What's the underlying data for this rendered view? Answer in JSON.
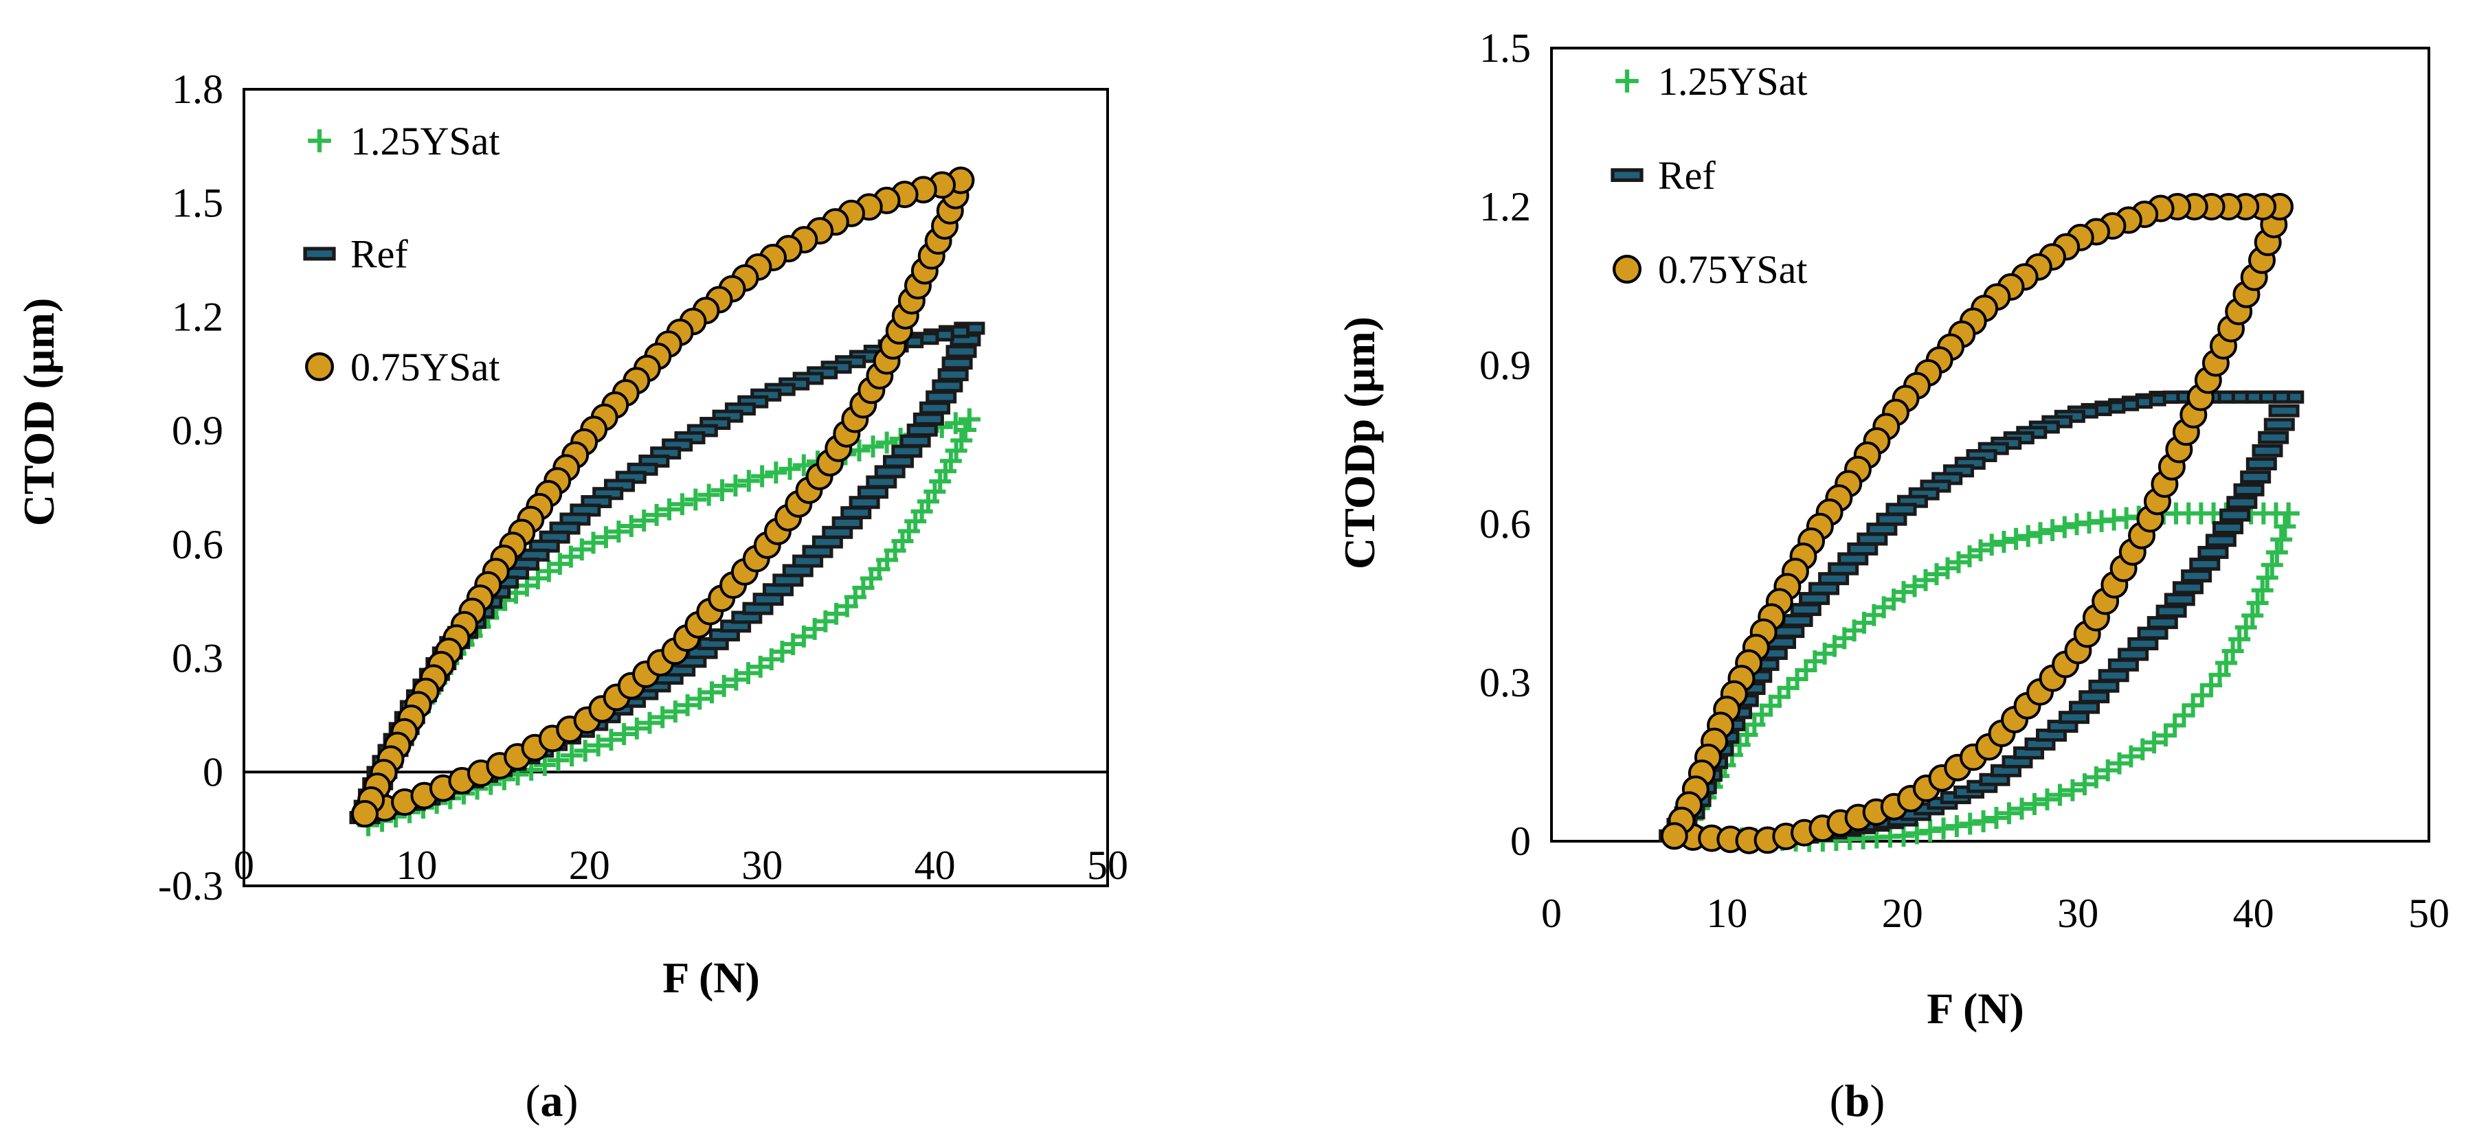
{
  "colors": {
    "series_125": "#2dbb4e",
    "series_ref_fill": "#1f5f7a",
    "series_ref_edge": "#1a1a1a",
    "series_075_fill": "#d39a1d",
    "series_075_edge": "#000000"
  },
  "chart_data": [
    {
      "type": "scatter",
      "panel_label": {
        "open": "(",
        "letter": "a",
        "close": ")"
      },
      "xlabel": "F (N)",
      "ylabel": "CTOD (µm)",
      "xlim": [
        0,
        50
      ],
      "ylim": [
        -0.3,
        1.8
      ],
      "xticks": [
        "0",
        "10",
        "20",
        "30",
        "40",
        "50"
      ],
      "yticks": [
        "-0.3",
        "0",
        "0.3",
        "0.6",
        "0.9",
        "1.2",
        "1.5",
        "1.8"
      ],
      "zero_line": true,
      "legend_placement": "top-left",
      "series": [
        {
          "name": "1.25YSat",
          "marker": "plus",
          "loading": [
            [
              7.2,
              -0.14
            ],
            [
              10,
              -0.1
            ],
            [
              15,
              -0.02
            ],
            [
              20,
              0.06
            ],
            [
              25,
              0.16
            ],
            [
              30,
              0.28
            ],
            [
              35,
              0.44
            ],
            [
              38,
              0.6
            ],
            [
              40,
              0.74
            ],
            [
              41.5,
              0.87
            ],
            [
              42,
              0.93
            ]
          ],
          "unloading": [
            [
              42,
              0.93
            ],
            [
              35,
              0.84
            ],
            [
              30,
              0.78
            ],
            [
              25,
              0.7
            ],
            [
              20,
              0.6
            ],
            [
              15,
              0.45
            ],
            [
              12,
              0.3
            ],
            [
              10,
              0.15
            ],
            [
              8,
              -0.02
            ],
            [
              7.2,
              -0.14
            ]
          ]
        },
        {
          "name": "Ref",
          "marker": "dash",
          "loading": [
            [
              7,
              -0.12
            ],
            [
              10,
              -0.08
            ],
            [
              15,
              0.01
            ],
            [
              20,
              0.12
            ],
            [
              25,
              0.26
            ],
            [
              30,
              0.44
            ],
            [
              35,
              0.66
            ],
            [
              39,
              0.88
            ],
            [
              41,
              1.04
            ],
            [
              42,
              1.17
            ]
          ],
          "unloading": [
            [
              42,
              1.17
            ],
            [
              38,
              1.13
            ],
            [
              35,
              1.08
            ],
            [
              30,
              0.99
            ],
            [
              25,
              0.86
            ],
            [
              20,
              0.7
            ],
            [
              15,
              0.5
            ],
            [
              12,
              0.33
            ],
            [
              10,
              0.18
            ],
            [
              8,
              0.0
            ],
            [
              7,
              -0.12
            ]
          ]
        },
        {
          "name": "0.75YSat",
          "marker": "circle",
          "loading": [
            [
              7,
              -0.11
            ],
            [
              10,
              -0.07
            ],
            [
              15,
              0.02
            ],
            [
              20,
              0.14
            ],
            [
              25,
              0.32
            ],
            [
              30,
              0.58
            ],
            [
              34,
              0.82
            ],
            [
              37,
              1.06
            ],
            [
              39,
              1.28
            ],
            [
              40.5,
              1.43
            ],
            [
              41.5,
              1.56
            ]
          ],
          "unloading": [
            [
              41.5,
              1.56
            ],
            [
              38,
              1.52
            ],
            [
              35,
              1.47
            ],
            [
              30,
              1.34
            ],
            [
              25,
              1.15
            ],
            [
              20,
              0.89
            ],
            [
              15,
              0.56
            ],
            [
              12,
              0.33
            ],
            [
              10,
              0.17
            ],
            [
              8,
              -0.01
            ],
            [
              7,
              -0.11
            ]
          ]
        }
      ]
    },
    {
      "type": "scatter",
      "panel_label": {
        "open": "(",
        "letter": "b",
        "close": ")"
      },
      "xlabel": "F (N)",
      "ylabel": "CTODp (µm)",
      "xlim": [
        0,
        50
      ],
      "ylim": [
        0,
        1.5
      ],
      "xticks": [
        "0",
        "10",
        "20",
        "30",
        "40",
        "50"
      ],
      "yticks": [
        "0",
        "0.3",
        "0.6",
        "0.9",
        "1.2",
        "1.5"
      ],
      "zero_line": false,
      "legend_placement": "top-left",
      "series": [
        {
          "name": "1.25YSat",
          "marker": "plus",
          "loading": [
            [
              7,
              0.01
            ],
            [
              15,
              0.0
            ],
            [
              20,
              0.01
            ],
            [
              25,
              0.04
            ],
            [
              30,
              0.1
            ],
            [
              35,
              0.2
            ],
            [
              38,
              0.31
            ],
            [
              40,
              0.43
            ],
            [
              41.5,
              0.56
            ],
            [
              42,
              0.62
            ]
          ],
          "unloading": [
            [
              42,
              0.62
            ],
            [
              38,
              0.62
            ],
            [
              35,
              0.62
            ],
            [
              30,
              0.6
            ],
            [
              25,
              0.56
            ],
            [
              20,
              0.47
            ],
            [
              15,
              0.34
            ],
            [
              12,
              0.24
            ],
            [
              10,
              0.15
            ],
            [
              8,
              0.04
            ],
            [
              7,
              0.01
            ]
          ]
        },
        {
          "name": "Ref",
          "marker": "dash",
          "loading": [
            [
              7,
              0.01
            ],
            [
              12,
              0.0
            ],
            [
              15,
              0.01
            ],
            [
              20,
              0.04
            ],
            [
              25,
              0.11
            ],
            [
              30,
              0.24
            ],
            [
              35,
              0.42
            ],
            [
              38,
              0.56
            ],
            [
              40,
              0.68
            ],
            [
              41.5,
              0.79
            ],
            [
              42,
              0.84
            ]
          ],
          "unloading": [
            [
              42,
              0.84
            ],
            [
              38,
              0.84
            ],
            [
              35,
              0.84
            ],
            [
              30,
              0.81
            ],
            [
              25,
              0.74
            ],
            [
              20,
              0.63
            ],
            [
              15,
              0.46
            ],
            [
              12,
              0.33
            ],
            [
              10,
              0.21
            ],
            [
              8,
              0.06
            ],
            [
              7,
              0.01
            ]
          ]
        },
        {
          "name": "0.75YSat",
          "marker": "circle",
          "loading": [
            [
              7,
              0.01
            ],
            [
              12,
              0.0
            ],
            [
              15,
              0.02
            ],
            [
              20,
              0.07
            ],
            [
              25,
              0.18
            ],
            [
              30,
              0.36
            ],
            [
              34,
              0.6
            ],
            [
              37,
              0.84
            ],
            [
              39,
              0.99
            ],
            [
              40.5,
              1.1
            ],
            [
              41.5,
              1.2
            ]
          ],
          "unloading": [
            [
              41.5,
              1.2
            ],
            [
              38,
              1.2
            ],
            [
              35,
              1.2
            ],
            [
              30,
              1.14
            ],
            [
              25,
              1.02
            ],
            [
              20,
              0.83
            ],
            [
              15,
              0.58
            ],
            [
              12,
              0.39
            ],
            [
              10,
              0.25
            ],
            [
              8,
              0.08
            ],
            [
              7,
              0.01
            ]
          ]
        }
      ]
    }
  ]
}
